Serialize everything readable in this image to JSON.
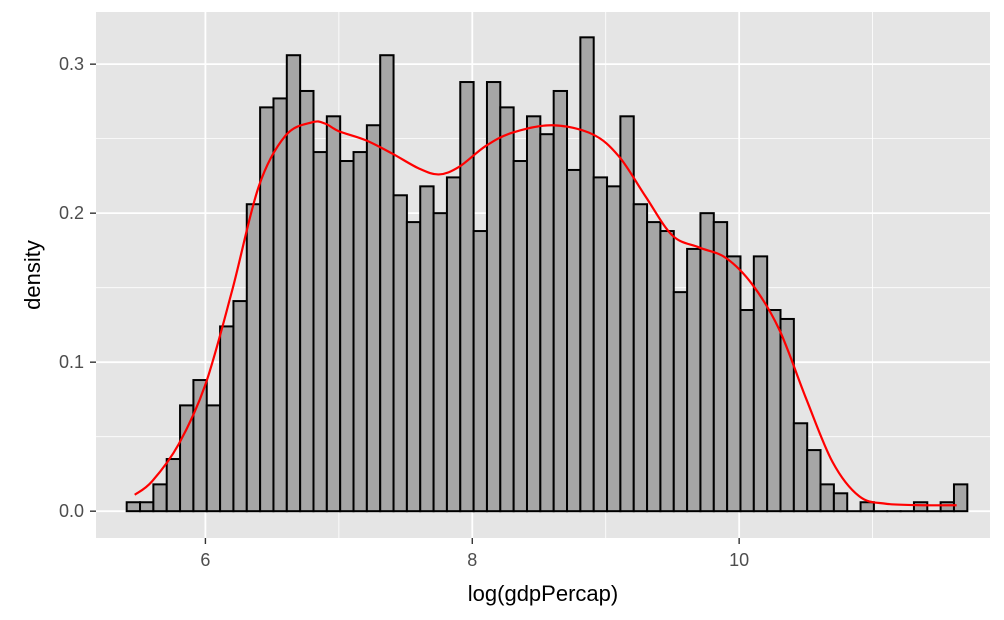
{
  "chart_data": {
    "type": "histogram",
    "xlabel": "log(gdpPercap)",
    "ylabel": "density",
    "xlim": [
      5.18,
      11.88
    ],
    "ylim": [
      -0.018,
      0.335
    ],
    "x_ticks": [
      6,
      8,
      10
    ],
    "x_tick_labels": [
      "6",
      "8",
      "10"
    ],
    "y_ticks": [
      0.0,
      0.1,
      0.2,
      0.3
    ],
    "y_tick_labels": [
      "0.0",
      "0.1",
      "0.2",
      "0.3"
    ],
    "grid": true,
    "colors": {
      "panel_background": "#e5e5e5",
      "grid": "#ffffff",
      "bar_fill": "#a6a6a6",
      "bar_outline": "#000000",
      "density_line": "#ff0000"
    },
    "bins": {
      "start": 5.41,
      "width": 0.1,
      "density": [
        0.006,
        0.006,
        0.018,
        0.035,
        0.071,
        0.088,
        0.071,
        0.124,
        0.141,
        0.206,
        0.271,
        0.277,
        0.306,
        0.282,
        0.241,
        0.265,
        0.235,
        0.241,
        0.259,
        0.306,
        0.212,
        0.194,
        0.218,
        0.2,
        0.224,
        0.288,
        0.188,
        0.288,
        0.271,
        0.235,
        0.265,
        0.253,
        0.282,
        0.229,
        0.318,
        0.224,
        0.218,
        0.265,
        0.206,
        0.194,
        0.188,
        0.147,
        0.176,
        0.2,
        0.194,
        0.171,
        0.135,
        0.171,
        0.135,
        0.129,
        0.059,
        0.041,
        0.018,
        0.012,
        0.0,
        0.006,
        0.0,
        0.0,
        0.0,
        0.006,
        0.0,
        0.006,
        0.018
      ]
    },
    "series": [
      {
        "type": "line",
        "x": [
          5.47,
          5.6,
          5.8,
          6.0,
          6.2,
          6.4,
          6.6,
          6.8,
          6.9,
          7.0,
          7.2,
          7.4,
          7.6,
          7.75,
          7.9,
          8.1,
          8.3,
          8.6,
          8.9,
          9.1,
          9.3,
          9.5,
          9.7,
          9.9,
          10.1,
          10.3,
          10.5,
          10.7,
          10.9,
          11.1,
          11.4,
          11.63
        ],
        "y": [
          0.011,
          0.02,
          0.045,
          0.085,
          0.148,
          0.218,
          0.252,
          0.261,
          0.26,
          0.255,
          0.249,
          0.24,
          0.23,
          0.226,
          0.231,
          0.245,
          0.254,
          0.259,
          0.253,
          0.238,
          0.211,
          0.185,
          0.177,
          0.17,
          0.152,
          0.122,
          0.076,
          0.033,
          0.01,
          0.005,
          0.004,
          0.004
        ]
      }
    ]
  }
}
